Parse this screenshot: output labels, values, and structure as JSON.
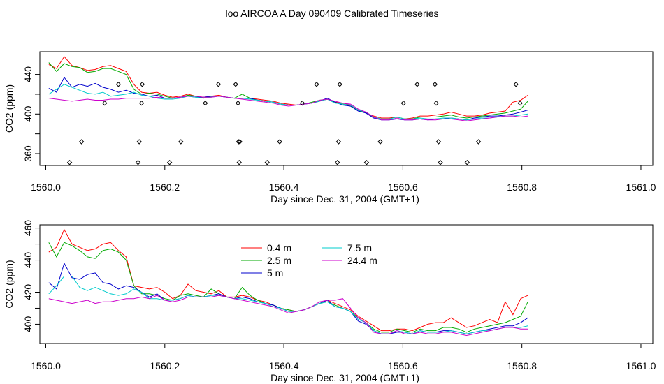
{
  "figure": {
    "title": "loo AIRCOA A  Day 090409  Calibrated Timeseries"
  },
  "chart_data": [
    {
      "type": "line",
      "xlabel": "Day since Dec. 31, 2004 (GMT+1)",
      "ylabel": "CO2 (ppm)",
      "xlim": [
        1559.99,
        1561.02
      ],
      "ylim": [
        348,
        463
      ],
      "x_ticks": [
        "1560.0",
        "1560.2",
        "1560.4",
        "1560.6",
        "1560.8",
        "1561.0"
      ],
      "y_ticks": [
        "360",
        "400",
        "440"
      ],
      "y_minor_ticks": [
        380,
        420
      ],
      "legend": "none",
      "x": [
        1560.005,
        1560.018,
        1560.031,
        1560.044,
        1560.057,
        1560.07,
        1560.083,
        1560.096,
        1560.109,
        1560.122,
        1560.135,
        1560.148,
        1560.161,
        1560.174,
        1560.187,
        1560.2,
        1560.213,
        1560.226,
        1560.239,
        1560.252,
        1560.265,
        1560.278,
        1560.291,
        1560.304,
        1560.317,
        1560.33,
        1560.343,
        1560.356,
        1560.369,
        1560.382,
        1560.395,
        1560.408,
        1560.421,
        1560.434,
        1560.447,
        1560.46,
        1560.473,
        1560.486,
        1560.499,
        1560.512,
        1560.525,
        1560.538,
        1560.551,
        1560.564,
        1560.577,
        1560.59,
        1560.603,
        1560.616,
        1560.629,
        1560.642,
        1560.655,
        1560.668,
        1560.681,
        1560.694,
        1560.707,
        1560.72,
        1560.733,
        1560.746,
        1560.759,
        1560.772,
        1560.785,
        1560.798,
        1560.81
      ],
      "series": [
        {
          "color": "#ff0000",
          "values": [
            450,
            446,
            458,
            449,
            447,
            444,
            445,
            448,
            449,
            446,
            443,
            430,
            422,
            421,
            422,
            419,
            417,
            418,
            420,
            418,
            417,
            418,
            419,
            417,
            416,
            416,
            416,
            415,
            414,
            413,
            411,
            410,
            409,
            410,
            411,
            413,
            415,
            412,
            411,
            409,
            404,
            401,
            398,
            396,
            396,
            397,
            395,
            396,
            398,
            398,
            399,
            400,
            402,
            400,
            398,
            398,
            399,
            401,
            402,
            403,
            412,
            414,
            419
          ]
        },
        {
          "color": "#00aa00",
          "values": [
            452,
            443,
            451,
            448,
            447,
            442,
            443,
            446,
            446,
            443,
            440,
            425,
            420,
            421,
            420,
            418,
            416,
            417,
            419,
            418,
            416,
            418,
            418,
            417,
            416,
            420,
            416,
            414,
            413,
            412,
            410,
            409,
            409,
            410,
            412,
            414,
            415,
            412,
            410,
            408,
            404,
            401,
            397,
            395,
            395,
            397,
            395,
            395,
            397,
            397,
            397,
            398,
            399,
            397,
            396,
            397,
            398,
            399,
            400,
            401,
            403,
            405,
            413
          ]
        },
        {
          "color": "#0000cc",
          "values": [
            426,
            422,
            437,
            427,
            430,
            428,
            431,
            427,
            425,
            422,
            424,
            421,
            420,
            418,
            419,
            416,
            416,
            417,
            418,
            417,
            417,
            418,
            418,
            417,
            416,
            416,
            416,
            414,
            413,
            412,
            410,
            409,
            409,
            410,
            411,
            413,
            416,
            412,
            409,
            408,
            403,
            401,
            396,
            394,
            394,
            395,
            394,
            394,
            395,
            394,
            395,
            395,
            396,
            395,
            394,
            396,
            397,
            398,
            398,
            399,
            400,
            402,
            404
          ]
        },
        {
          "color": "#00cccc",
          "values": [
            420,
            425,
            430,
            427,
            424,
            421,
            420,
            422,
            418,
            419,
            420,
            422,
            419,
            418,
            416,
            415,
            415,
            416,
            418,
            417,
            416,
            417,
            418,
            417,
            416,
            416,
            415,
            414,
            413,
            412,
            410,
            409,
            409,
            410,
            411,
            413,
            415,
            411,
            410,
            409,
            404,
            402,
            397,
            395,
            395,
            397,
            395,
            395,
            396,
            395,
            395,
            396,
            396,
            395,
            394,
            395,
            396,
            396,
            397,
            398,
            398,
            399,
            400
          ]
        },
        {
          "color": "#cc00cc",
          "values": [
            416,
            415,
            414,
            413,
            414,
            415,
            414,
            414,
            415,
            415,
            416,
            416,
            416,
            416,
            417,
            416,
            416,
            417,
            418,
            418,
            417,
            417,
            418,
            417,
            416,
            415,
            414,
            413,
            412,
            411,
            409,
            408,
            409,
            410,
            411,
            414,
            415,
            413,
            411,
            410,
            405,
            402,
            397,
            394,
            394,
            396,
            394,
            394,
            395,
            394,
            394,
            395,
            395,
            394,
            393,
            394,
            395,
            396,
            397,
            398,
            398,
            397,
            398
          ]
        }
      ],
      "points": {
        "color": "#000000",
        "x": [
          1560.04,
          1560.06,
          1560.099,
          1560.122,
          1560.155,
          1560.157,
          1560.161,
          1560.162,
          1560.208,
          1560.227,
          1560.268,
          1560.29,
          1560.319,
          1560.323,
          1560.324,
          1560.325,
          1560.326,
          1560.372,
          1560.393,
          1560.431,
          1560.455,
          1560.49,
          1560.492,
          1560.494,
          1560.539,
          1560.562,
          1560.601,
          1560.624,
          1560.654,
          1560.656,
          1560.66,
          1560.663,
          1560.708,
          1560.727,
          1560.79,
          1560.797
        ],
        "y": [
          351,
          372,
          411,
          430,
          351,
          372,
          411,
          430,
          351,
          372,
          411,
          430,
          430,
          411,
          372,
          351,
          372,
          351,
          372,
          411,
          430,
          351,
          372,
          430,
          351,
          372,
          411,
          430,
          430,
          411,
          372,
          351,
          351,
          372,
          430,
          411
        ]
      }
    },
    {
      "type": "line",
      "xlabel": "Day since Dec. 31, 2004 (GMT+1)",
      "ylabel": "CO2 (ppm)",
      "xlim": [
        1559.99,
        1561.02
      ],
      "ylim": [
        388,
        462
      ],
      "x_ticks": [
        "1560.0",
        "1560.2",
        "1560.4",
        "1560.6",
        "1560.8",
        "1561.0"
      ],
      "y_ticks": [
        "400",
        "420",
        "440",
        "460"
      ],
      "y_minor_ticks": [
        410,
        430,
        450
      ],
      "legend": "top-left, two columns",
      "legend_entries": [
        "0.4 m",
        "2.5 m",
        "5 m",
        "7.5 m",
        "24.4 m"
      ],
      "x": [
        1560.005,
        1560.018,
        1560.031,
        1560.044,
        1560.057,
        1560.07,
        1560.083,
        1560.096,
        1560.109,
        1560.122,
        1560.135,
        1560.148,
        1560.161,
        1560.174,
        1560.187,
        1560.2,
        1560.213,
        1560.226,
        1560.239,
        1560.252,
        1560.265,
        1560.278,
        1560.291,
        1560.304,
        1560.317,
        1560.33,
        1560.343,
        1560.356,
        1560.369,
        1560.382,
        1560.395,
        1560.408,
        1560.421,
        1560.434,
        1560.447,
        1560.46,
        1560.473,
        1560.486,
        1560.499,
        1560.512,
        1560.525,
        1560.538,
        1560.551,
        1560.564,
        1560.577,
        1560.59,
        1560.603,
        1560.616,
        1560.629,
        1560.642,
        1560.655,
        1560.668,
        1560.681,
        1560.694,
        1560.707,
        1560.72,
        1560.733,
        1560.746,
        1560.759,
        1560.772,
        1560.785,
        1560.798,
        1560.81
      ],
      "series": [
        {
          "name": "0.4 m",
          "color": "#ff0000",
          "values": [
            445,
            448,
            459,
            450,
            448,
            446,
            447,
            450,
            451,
            446,
            442,
            424,
            423,
            422,
            423,
            420,
            416,
            418,
            425,
            421,
            420,
            419,
            421,
            417,
            417,
            418,
            417,
            415,
            414,
            412,
            410,
            409,
            408,
            409,
            411,
            413,
            415,
            413,
            411,
            409,
            405,
            402,
            399,
            396,
            396,
            397,
            397,
            396,
            398,
            400,
            401,
            401,
            404,
            401,
            398,
            399,
            401,
            403,
            401,
            414,
            406,
            416,
            418
          ]
        },
        {
          "name": "2.5 m",
          "color": "#00aa00",
          "values": [
            451,
            442,
            451,
            449,
            446,
            442,
            441,
            446,
            447,
            445,
            440,
            424,
            419,
            419,
            418,
            416,
            415,
            418,
            419,
            418,
            417,
            422,
            419,
            417,
            416,
            423,
            418,
            415,
            413,
            412,
            410,
            409,
            408,
            409,
            411,
            413,
            414,
            412,
            410,
            408,
            404,
            401,
            397,
            395,
            395,
            397,
            396,
            395,
            397,
            396,
            396,
            398,
            398,
            397,
            395,
            397,
            398,
            399,
            400,
            401,
            403,
            405,
            414
          ]
        },
        {
          "name": "5 m",
          "color": "#0000cc",
          "values": [
            426,
            422,
            438,
            429,
            428,
            431,
            432,
            426,
            425,
            422,
            424,
            423,
            420,
            417,
            419,
            415,
            415,
            416,
            418,
            417,
            417,
            418,
            419,
            417,
            416,
            417,
            416,
            414,
            413,
            412,
            410,
            408,
            408,
            409,
            411,
            413,
            415,
            411,
            410,
            408,
            402,
            400,
            396,
            394,
            394,
            395,
            395,
            394,
            396,
            395,
            395,
            396,
            396,
            395,
            394,
            395,
            396,
            397,
            398,
            399,
            399,
            401,
            404
          ]
        },
        {
          "name": "7.5 m",
          "color": "#00cccc",
          "values": [
            419,
            424,
            430,
            430,
            423,
            421,
            423,
            421,
            419,
            418,
            419,
            422,
            420,
            416,
            416,
            415,
            415,
            416,
            418,
            417,
            417,
            418,
            418,
            417,
            416,
            416,
            415,
            414,
            413,
            411,
            410,
            408,
            408,
            409,
            411,
            413,
            414,
            411,
            410,
            408,
            403,
            401,
            396,
            394,
            394,
            396,
            395,
            394,
            396,
            395,
            395,
            395,
            396,
            395,
            394,
            395,
            396,
            396,
            397,
            398,
            398,
            398,
            399
          ]
        },
        {
          "name": "24.4 m",
          "color": "#cc00cc",
          "values": [
            416,
            415,
            414,
            413,
            414,
            415,
            413,
            414,
            414,
            415,
            416,
            416,
            417,
            416,
            418,
            415,
            414,
            415,
            417,
            417,
            417,
            417,
            418,
            417,
            416,
            415,
            414,
            413,
            412,
            411,
            409,
            407,
            408,
            409,
            411,
            414,
            415,
            415,
            416,
            410,
            404,
            401,
            395,
            394,
            394,
            396,
            394,
            394,
            395,
            394,
            394,
            395,
            395,
            394,
            393,
            394,
            395,
            396,
            397,
            398,
            398,
            397,
            397
          ]
        }
      ]
    }
  ]
}
